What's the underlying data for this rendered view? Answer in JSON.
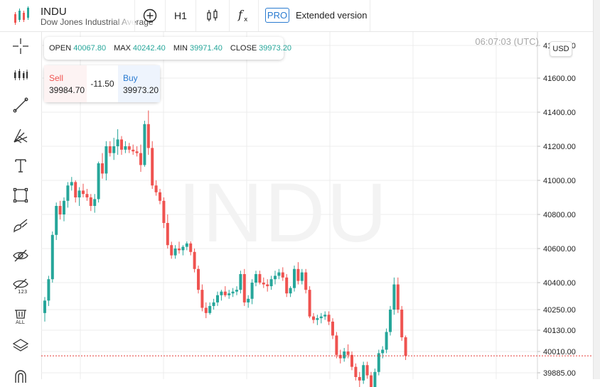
{
  "toolbar": {
    "symbol": "INDU",
    "symbol_name": "Dow Jones Industrial Average",
    "timeframe": "H1",
    "pro_badge": "PRO",
    "extended_label": "Extended version"
  },
  "left_tools": [
    "crosshair-icon",
    "candles-icon",
    "trend-line-icon",
    "fib-icon",
    "text-icon",
    "rectangle-icon",
    "brush-icon",
    "hide-drawings-icon",
    "hide-values-icon",
    "delete-all-icon",
    "layers-icon",
    "magnet-icon"
  ],
  "info": {
    "open_label": "OPEN",
    "open": "40067.80",
    "max_label": "MAX",
    "max": "40242.40",
    "min_label": "MIN",
    "min": "39971.40",
    "close_label": "CLOSE",
    "close": "39973.20"
  },
  "trade": {
    "sell_label": "Sell",
    "sell_price": "39984.70",
    "spread": "-11.50",
    "buy_label": "Buy",
    "buy_price": "39973.20"
  },
  "time": "06:07:03 (UTC)",
  "currency": "USD",
  "watermark": "INDU",
  "colors": {
    "up": "#26a69a",
    "down": "#ef5350",
    "accent": "#2a7bd0"
  },
  "chart_data": {
    "type": "candlestick",
    "y_ticks": [
      "41800.00",
      "41600.00",
      "41400.00",
      "41200.00",
      "41000.00",
      "40800.00",
      "40600.00",
      "40400.00",
      "40250.00",
      "40130.00",
      "40010.00",
      "39885.00"
    ],
    "y_tick_values": [
      41800,
      41600,
      41400,
      41200,
      41000,
      40800,
      40600,
      40400,
      40250,
      40130,
      40010,
      39885
    ],
    "last_price": 39984.7,
    "candles": [
      [
        40230,
        40320,
        40180,
        40300
      ],
      [
        40300,
        40440,
        40270,
        40420
      ],
      [
        40420,
        40700,
        40400,
        40680
      ],
      [
        40680,
        40870,
        40650,
        40850
      ],
      [
        40850,
        40880,
        40770,
        40800
      ],
      [
        40800,
        40900,
        40760,
        40880
      ],
      [
        40880,
        40990,
        40840,
        40970
      ],
      [
        40970,
        41020,
        40940,
        40990
      ],
      [
        40990,
        41000,
        40870,
        40900
      ],
      [
        40900,
        40960,
        40850,
        40940
      ],
      [
        40940,
        40980,
        40900,
        40920
      ],
      [
        40920,
        40950,
        40880,
        40900
      ],
      [
        40900,
        40920,
        40820,
        40850
      ],
      [
        40850,
        40920,
        40810,
        40890
      ],
      [
        40890,
        41110,
        40870,
        41100
      ],
      [
        41100,
        41160,
        41010,
        41040
      ],
      [
        41040,
        41230,
        41000,
        41200
      ],
      [
        41200,
        41230,
        41140,
        41160
      ],
      [
        41160,
        41250,
        41120,
        41200
      ],
      [
        41200,
        41300,
        41150,
        41240
      ],
      [
        41240,
        41260,
        41150,
        41180
      ],
      [
        41180,
        41230,
        41160,
        41200
      ],
      [
        41200,
        41220,
        41160,
        41180
      ],
      [
        41180,
        41210,
        41150,
        41170
      ],
      [
        41170,
        41200,
        41140,
        41160
      ],
      [
        41160,
        41210,
        41050,
        41090
      ],
      [
        41090,
        41350,
        41080,
        41330
      ],
      [
        41330,
        41410,
        41150,
        41190
      ],
      [
        41190,
        41230,
        40950,
        40970
      ],
      [
        40970,
        41000,
        40910,
        40930
      ],
      [
        40930,
        40950,
        40860,
        40880
      ],
      [
        40880,
        40900,
        40720,
        40750
      ],
      [
        40750,
        40800,
        40600,
        40620
      ],
      [
        40620,
        40640,
        40540,
        40560
      ],
      [
        40560,
        40620,
        40540,
        40600
      ],
      [
        40600,
        40640,
        40570,
        40590
      ],
      [
        40590,
        40620,
        40560,
        40610
      ],
      [
        40610,
        40650,
        40590,
        40630
      ],
      [
        40630,
        40650,
        40560,
        40580
      ],
      [
        40580,
        40600,
        40460,
        40480
      ],
      [
        40480,
        40500,
        40340,
        40360
      ],
      [
        40360,
        40390,
        40240,
        40260
      ],
      [
        40260,
        40290,
        40200,
        40230
      ],
      [
        40230,
        40290,
        40220,
        40270
      ],
      [
        40270,
        40310,
        40250,
        40290
      ],
      [
        40290,
        40350,
        40270,
        40330
      ],
      [
        40330,
        40360,
        40300,
        40350
      ],
      [
        40350,
        40380,
        40320,
        40330
      ],
      [
        40330,
        40360,
        40310,
        40340
      ],
      [
        40340,
        40370,
        40320,
        40350
      ],
      [
        40350,
        40380,
        40330,
        40360
      ],
      [
        40360,
        40470,
        40340,
        40450
      ],
      [
        40450,
        40480,
        40270,
        40290
      ],
      [
        40290,
        40330,
        40260,
        40310
      ],
      [
        40310,
        40420,
        40280,
        40400
      ],
      [
        40400,
        40470,
        40380,
        40450
      ],
      [
        40450,
        40470,
        40390,
        40400
      ],
      [
        40400,
        40430,
        40370,
        40390
      ],
      [
        40390,
        40420,
        40350,
        40380
      ],
      [
        40380,
        40440,
        40360,
        40420
      ],
      [
        40420,
        40470,
        40390,
        40440
      ],
      [
        40440,
        40480,
        40420,
        40460
      ],
      [
        40460,
        40490,
        40410,
        40430
      ],
      [
        40430,
        40450,
        40320,
        40340
      ],
      [
        40340,
        40380,
        40320,
        40370
      ],
      [
        40370,
        40500,
        40350,
        40480
      ],
      [
        40480,
        40520,
        40390,
        40410
      ],
      [
        40410,
        40480,
        40390,
        40460
      ],
      [
        40460,
        40480,
        40340,
        40360
      ],
      [
        40360,
        40380,
        40200,
        40210
      ],
      [
        40210,
        40230,
        40170,
        40190
      ],
      [
        40190,
        40220,
        40160,
        40200
      ],
      [
        40200,
        40230,
        40170,
        40210
      ],
      [
        40210,
        40240,
        40190,
        40220
      ],
      [
        40220,
        40240,
        40160,
        40180
      ],
      [
        40180,
        40200,
        40080,
        40100
      ],
      [
        40100,
        40120,
        39970,
        39990
      ],
      [
        39990,
        40020,
        39940,
        39970
      ],
      [
        39970,
        40030,
        39950,
        40010
      ],
      [
        40010,
        40050,
        39970,
        39990
      ],
      [
        39990,
        40010,
        39900,
        39920
      ],
      [
        39920,
        39940,
        39840,
        39860
      ],
      [
        39860,
        39890,
        39800,
        39840
      ],
      [
        39840,
        39950,
        39820,
        39930
      ],
      [
        39930,
        39950,
        39850,
        39870
      ],
      [
        39870,
        39890,
        39780,
        39800
      ],
      [
        39800,
        39910,
        39780,
        39890
      ],
      [
        39890,
        40020,
        39870,
        40000
      ],
      [
        40000,
        40040,
        39970,
        40020
      ],
      [
        40020,
        40140,
        40000,
        40120
      ],
      [
        40120,
        40270,
        40100,
        40250
      ],
      [
        40250,
        40430,
        40220,
        40390
      ],
      [
        40390,
        40430,
        40230,
        40250
      ],
      [
        40250,
        40270,
        40070,
        40090
      ],
      [
        40090,
        40100,
        39960,
        39985
      ]
    ]
  }
}
